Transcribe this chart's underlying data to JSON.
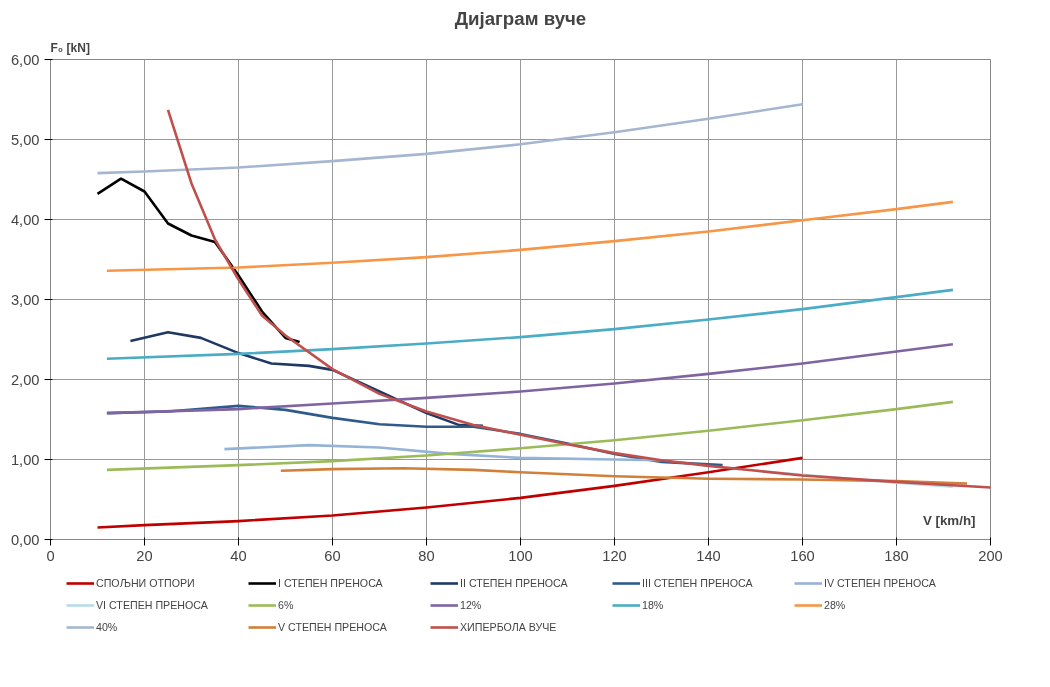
{
  "chart_data": {
    "type": "line",
    "title": "Дијаграм вуче",
    "ylabel": "F₀ [kN]",
    "xlabel": "V [km/h]",
    "xlim": [
      0,
      200
    ],
    "xticks": [
      0,
      20,
      40,
      60,
      80,
      100,
      120,
      140,
      160,
      180,
      200
    ],
    "ylim": [
      0,
      6
    ],
    "yticks": [
      {
        "value": 0,
        "label": "0,00"
      },
      {
        "value": 1,
        "label": "1,00"
      },
      {
        "value": 2,
        "label": "2,00"
      },
      {
        "value": 3,
        "label": "3,00"
      },
      {
        "value": 4,
        "label": "4,00"
      },
      {
        "value": 5,
        "label": "5,00"
      },
      {
        "value": 6,
        "label": "6,00"
      }
    ],
    "grid": true,
    "legend": "bottom",
    "marker": "none",
    "line_style": "solid",
    "series": [
      {
        "name": "СПОЉНИ ОТПОРИ",
        "color": "#c00000",
        "x": [
          10,
          20,
          40,
          60,
          80,
          100,
          120,
          140,
          160
        ],
        "values": [
          0.15,
          0.18,
          0.23,
          0.3,
          0.4,
          0.52,
          0.67,
          0.84,
          1.02
        ]
      },
      {
        "name": "I СТЕПЕН ПРЕНОСА",
        "color": "#000000",
        "x": [
          10,
          15,
          20,
          25,
          30,
          35,
          40,
          45,
          50,
          53
        ],
        "values": [
          4.32,
          4.51,
          4.35,
          3.95,
          3.8,
          3.72,
          3.3,
          2.85,
          2.52,
          2.47
        ]
      },
      {
        "name": "II СТЕПЕН ПРЕНОСА",
        "color": "#1f3864",
        "x": [
          17,
          25,
          32,
          40,
          47,
          55,
          60,
          70,
          80,
          87,
          92
        ],
        "values": [
          2.48,
          2.59,
          2.52,
          2.33,
          2.2,
          2.17,
          2.12,
          1.85,
          1.58,
          1.43,
          1.42
        ]
      },
      {
        "name": "III СТЕПЕН ПРЕНОСА",
        "color": "#2e5b8c",
        "x": [
          12,
          25,
          40,
          50,
          60,
          70,
          80,
          90,
          100,
          110,
          120,
          130,
          143
        ],
        "values": [
          1.58,
          1.6,
          1.67,
          1.62,
          1.52,
          1.44,
          1.41,
          1.41,
          1.32,
          1.2,
          1.07,
          0.97,
          0.93
        ]
      },
      {
        "name": "IV СТЕПЕН ПРЕНОСА",
        "color": "#95b3d7",
        "x": [
          37,
          55,
          70,
          85,
          100,
          120,
          130
        ],
        "values": [
          1.13,
          1.18,
          1.15,
          1.07,
          1.02,
          1.0,
          0.99
        ]
      },
      {
        "name": "VI СТЕПЕН ПРЕНОСА",
        "color": "#b7dde8",
        "x": [
          150,
          170,
          180,
          192
        ],
        "values": [
          0.86,
          0.76,
          0.71,
          0.66
        ]
      },
      {
        "name": "6%",
        "color": "#9bbb59",
        "x": [
          12,
          40,
          60,
          80,
          100,
          120,
          140,
          160,
          180,
          192
        ],
        "values": [
          0.87,
          0.93,
          0.98,
          1.05,
          1.14,
          1.24,
          1.36,
          1.49,
          1.63,
          1.72
        ]
      },
      {
        "name": "12%",
        "color": "#8064a2",
        "x": [
          12,
          40,
          60,
          80,
          100,
          120,
          140,
          160,
          180,
          192
        ],
        "values": [
          1.58,
          1.63,
          1.7,
          1.77,
          1.85,
          1.95,
          2.07,
          2.2,
          2.35,
          2.44
        ]
      },
      {
        "name": "18%",
        "color": "#4bacc6",
        "x": [
          12,
          40,
          60,
          80,
          100,
          120,
          140,
          160,
          180,
          192
        ],
        "values": [
          2.26,
          2.32,
          2.38,
          2.45,
          2.53,
          2.63,
          2.75,
          2.88,
          3.03,
          3.12
        ]
      },
      {
        "name": "28%",
        "color": "#f79646",
        "x": [
          12,
          40,
          60,
          80,
          100,
          120,
          140,
          160,
          180,
          192
        ],
        "values": [
          3.36,
          3.4,
          3.46,
          3.53,
          3.62,
          3.73,
          3.85,
          3.99,
          4.13,
          4.22
        ]
      },
      {
        "name": "40%",
        "color": "#a5b6d0",
        "x": [
          10,
          20,
          40,
          60,
          80,
          100,
          120,
          140,
          160
        ],
        "values": [
          4.58,
          4.6,
          4.65,
          4.73,
          4.82,
          4.94,
          5.09,
          5.26,
          5.44
        ]
      },
      {
        "name": "V СТЕПЕН ПРЕНОСА",
        "color": "#d0803a",
        "x": [
          49,
          60,
          75,
          90,
          100,
          120,
          140,
          160,
          180,
          195
        ],
        "values": [
          0.86,
          0.88,
          0.89,
          0.87,
          0.84,
          0.79,
          0.76,
          0.75,
          0.73,
          0.7
        ]
      },
      {
        "name": "ХИПЕРБОЛА ВУЧЕ",
        "color": "#c0504d",
        "x": [
          25,
          30,
          35,
          40,
          45,
          50,
          60,
          70,
          80,
          90,
          100,
          110,
          120,
          130,
          140,
          160,
          180,
          200
        ],
        "values": [
          5.37,
          4.45,
          3.75,
          3.25,
          2.8,
          2.55,
          2.13,
          1.82,
          1.6,
          1.43,
          1.31,
          1.19,
          1.08,
          0.99,
          0.92,
          0.8,
          0.72,
          0.65
        ]
      }
    ]
  }
}
